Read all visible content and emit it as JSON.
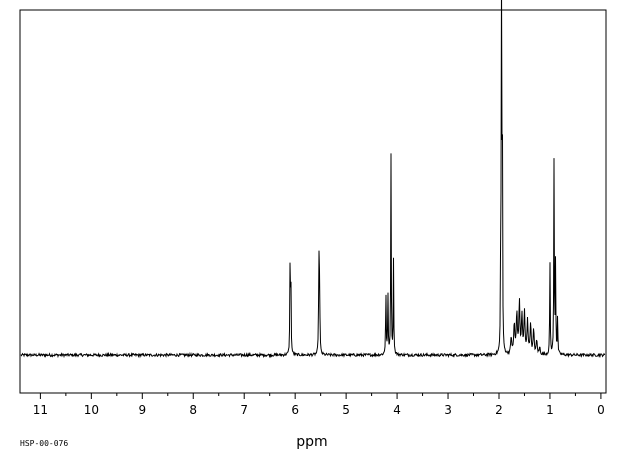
{
  "chart_data": {
    "type": "line",
    "title": "",
    "xlabel": "ppm",
    "ylabel": "",
    "xlim": [
      11.4,
      -0.1
    ],
    "x_reversed": true,
    "ylim": [
      -0.11,
      1.0
    ],
    "grid": false,
    "x_ticks": [
      11,
      10,
      9,
      8,
      7,
      6,
      5,
      4,
      3,
      2,
      1,
      0
    ],
    "x_tick_labels": [
      "11",
      "10",
      "9",
      "8",
      "7",
      "6",
      "5",
      "4",
      "3",
      "2",
      "1",
      "0"
    ],
    "x_minor_step": 0.5,
    "baseline": 0.0,
    "noise_amplitude": 0.004,
    "series": [
      {
        "peaks": [
          {
            "x": 6.1,
            "h": 0.255,
            "w": 0.006
          },
          {
            "x": 6.085,
            "h": 0.24,
            "w": 0.006
          },
          {
            "x": 5.535,
            "h": 0.31,
            "w": 0.006
          },
          {
            "x": 5.52,
            "h": 0.22,
            "w": 0.006
          },
          {
            "x": 4.22,
            "h": 0.2,
            "w": 0.006
          },
          {
            "x": 4.18,
            "h": 0.185,
            "w": 0.006
          },
          {
            "x": 4.12,
            "h": 0.59,
            "w": 0.006
          },
          {
            "x": 4.07,
            "h": 0.27,
            "w": 0.006
          },
          {
            "x": 1.965,
            "h": 0.47,
            "w": 0.005
          },
          {
            "x": 1.95,
            "h": 0.98,
            "w": 0.005
          },
          {
            "x": 1.935,
            "h": 0.9,
            "w": 0.005
          },
          {
            "x": 1.76,
            "h": 0.05,
            "w": 0.012
          },
          {
            "x": 1.7,
            "h": 0.09,
            "w": 0.012
          },
          {
            "x": 1.65,
            "h": 0.12,
            "w": 0.012
          },
          {
            "x": 1.6,
            "h": 0.15,
            "w": 0.012
          },
          {
            "x": 1.55,
            "h": 0.11,
            "w": 0.012
          },
          {
            "x": 1.5,
            "h": 0.12,
            "w": 0.012
          },
          {
            "x": 1.44,
            "h": 0.1,
            "w": 0.012
          },
          {
            "x": 1.38,
            "h": 0.09,
            "w": 0.012
          },
          {
            "x": 1.32,
            "h": 0.07,
            "w": 0.012
          },
          {
            "x": 1.26,
            "h": 0.04,
            "w": 0.012
          },
          {
            "x": 1.2,
            "h": 0.02,
            "w": 0.012
          },
          {
            "x": 1.0,
            "h": 0.27,
            "w": 0.006
          },
          {
            "x": 0.92,
            "h": 0.56,
            "w": 0.006
          },
          {
            "x": 0.89,
            "h": 0.27,
            "w": 0.006
          },
          {
            "x": 0.85,
            "h": 0.11,
            "w": 0.006
          }
        ]
      }
    ]
  },
  "footer": {
    "code": "HSP-00-076"
  }
}
